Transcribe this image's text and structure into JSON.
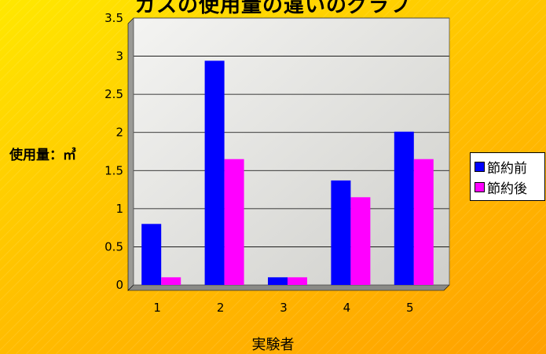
{
  "chart_data": {
    "type": "bar",
    "title": "ガスの使用量の違いのグラフ",
    "xlabel": "実験者",
    "ylabel": "使用量：㎥",
    "categories": [
      "1",
      "2",
      "3",
      "4",
      "5"
    ],
    "ylim": [
      0,
      3.5
    ],
    "yticks": [
      "0",
      "0.5",
      "1",
      "1.5",
      "2",
      "2.5",
      "3",
      "3.5"
    ],
    "grid": true,
    "legend_position": "right",
    "series": [
      {
        "name": "節約前",
        "color": "#0000ff",
        "values": [
          0.8,
          2.94,
          0.1,
          1.37,
          2.01
        ]
      },
      {
        "name": "節約後",
        "color": "#ff00ff",
        "values": [
          0.1,
          1.65,
          0.1,
          1.15,
          1.65
        ]
      }
    ]
  }
}
